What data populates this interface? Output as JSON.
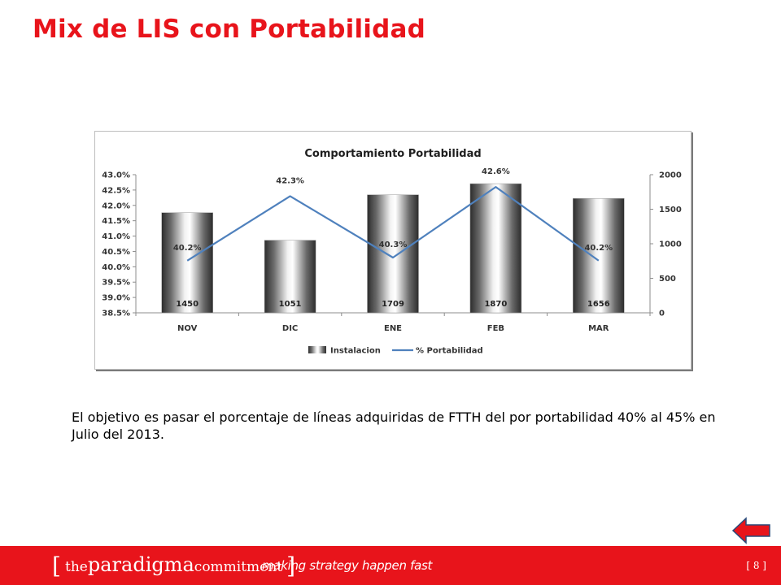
{
  "slide": {
    "title": "Mix de LIS con Portabilidad",
    "body": "El objetivo es pasar el porcentaje de líneas adquiridas de FTTH del por portabilidad 40% al 45% en Julio del 2013."
  },
  "footer": {
    "bracket_open": "[",
    "brand_the": "the",
    "brand_paradigma": "paradigma",
    "brand_commitment": "commitment",
    "bracket_close": "]",
    "tagline": "making strategy happen fast",
    "page_number": "[ 8 ]"
  },
  "colors": {
    "accent": "#e8141b",
    "line": "#4f81bd"
  },
  "chart_data": {
    "type": "bar",
    "title": "Comportamiento Portabilidad",
    "categories": [
      "NOV",
      "DIC",
      "ENE",
      "FEB",
      "MAR"
    ],
    "series": [
      {
        "name": "Instalacion",
        "type": "bar",
        "axis": "right",
        "values": [
          1450,
          1051,
          1709,
          1870,
          1656
        ],
        "labels": [
          "1450",
          "1051",
          "1709",
          "1870",
          "1656"
        ]
      },
      {
        "name": "% Portabilidad",
        "type": "line",
        "axis": "left",
        "values": [
          40.2,
          42.3,
          40.3,
          42.6,
          40.2
        ],
        "labels": [
          "40.2%",
          "42.3%",
          "40.3%",
          "42.6%",
          "40.2%"
        ]
      }
    ],
    "y_left": {
      "min": 38.5,
      "max": 43.0,
      "ticks": [
        "43.0%",
        "42.5%",
        "42.0%",
        "41.5%",
        "41.0%",
        "40.5%",
        "40.0%",
        "39.5%",
        "39.0%",
        "38.5%"
      ]
    },
    "y_right": {
      "min": 0,
      "max": 2000,
      "ticks": [
        "2000",
        "1500",
        "1000",
        "500",
        "0"
      ]
    },
    "legend": "bottom",
    "grid": false
  }
}
